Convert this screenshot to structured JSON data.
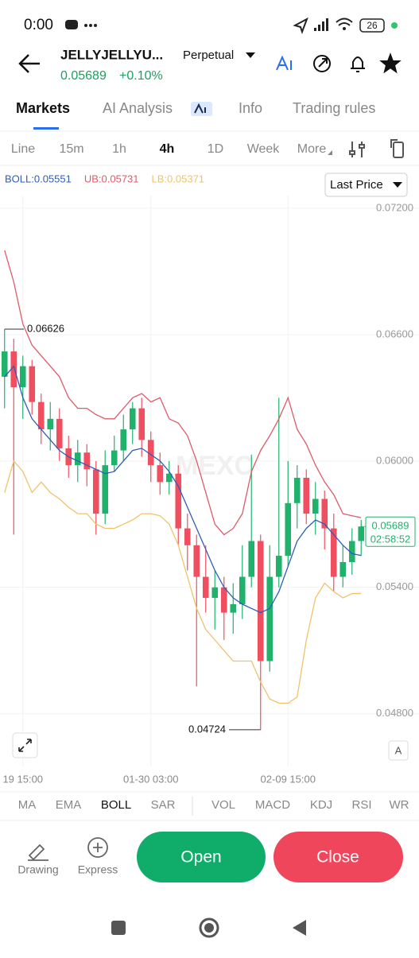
{
  "status_bar": {
    "time": "0:00",
    "battery": "26"
  },
  "header": {
    "symbol": "JELLYJELLYU...",
    "contract": "Perpetual",
    "price": "0.05689",
    "change": "+0.10%"
  },
  "tabs": [
    "Markets",
    "AI Analysis",
    "Info",
    "Trading rules"
  ],
  "intervals": [
    "Line",
    "15m",
    "1h",
    "4h",
    "1D",
    "Week",
    "More"
  ],
  "price_type": "Last Price",
  "indicators": [
    "MA",
    "EMA",
    "BOLL",
    "SAR",
    "VOL",
    "MACD",
    "KDJ",
    "RSI",
    "WR"
  ],
  "actions": {
    "drawing": "Drawing",
    "express": "Express",
    "open": "Open",
    "close": "Close"
  },
  "chart_data": {
    "type": "candlestick",
    "watermark": "MEXC",
    "scale_button": "A",
    "countdown": "02:58:52",
    "up_color": "#20b26c",
    "down_color": "#ef4f5f",
    "ylim": [
      0.0455,
      0.0726
    ],
    "yticks": [
      {
        "value": 0.072,
        "label": "0.07200"
      },
      {
        "value": 0.066,
        "label": "0.06600"
      },
      {
        "value": 0.06,
        "label": "0.06000"
      },
      {
        "value": 0.054,
        "label": "0.05400"
      },
      {
        "value": 0.048,
        "label": "0.04800"
      }
    ],
    "categories": [
      null,
      null,
      "19 15:00",
      null,
      null,
      null,
      null,
      null,
      null,
      null,
      null,
      null,
      null,
      null,
      null,
      null,
      "01-30 03:00",
      null,
      null,
      null,
      null,
      null,
      null,
      null,
      null,
      null,
      null,
      null,
      null,
      null,
      null,
      "02-09 15:00",
      null,
      null,
      null,
      null,
      null,
      null,
      null,
      null
    ],
    "open": [
      0.064,
      0.0652,
      0.0635,
      0.0645,
      0.0628,
      0.0615,
      0.062,
      0.0606,
      0.0598,
      0.0604,
      0.0596,
      0.0575,
      0.0598,
      0.0605,
      0.0615,
      0.0625,
      0.061,
      0.0598,
      0.059,
      0.0594,
      0.0568,
      0.056,
      0.0545,
      0.0535,
      0.054,
      0.0528,
      0.0532,
      0.0545,
      0.0562,
      0.0505,
      0.0545,
      0.0555,
      0.058,
      0.0592,
      0.0575,
      0.0582,
      0.0568,
      0.0545,
      0.0552,
      0.0562
    ],
    "high": [
      0.06626,
      0.0658,
      0.065,
      0.0648,
      0.0632,
      0.0628,
      0.0625,
      0.0612,
      0.061,
      0.0608,
      0.06,
      0.0605,
      0.0612,
      0.0622,
      0.0628,
      0.063,
      0.0614,
      0.0604,
      0.06,
      0.0598,
      0.0575,
      0.0565,
      0.056,
      0.0548,
      0.0545,
      0.0542,
      0.056,
      0.0603,
      0.0565,
      0.056,
      0.063,
      0.06,
      0.0598,
      0.0596,
      0.059,
      0.0586,
      0.0575,
      0.056,
      0.0568,
      0.0572
    ],
    "low": [
      0.0625,
      0.0565,
      0.062,
      0.0622,
      0.0608,
      0.0605,
      0.06,
      0.0592,
      0.059,
      0.0588,
      0.0565,
      0.057,
      0.0595,
      0.06,
      0.0608,
      0.0602,
      0.059,
      0.0584,
      0.0584,
      0.056,
      0.0548,
      0.0493,
      0.0528,
      0.052,
      0.0515,
      0.0518,
      0.0525,
      0.054,
      0.04724,
      0.05,
      0.054,
      0.055,
      0.0568,
      0.057,
      0.0565,
      0.0558,
      0.0538,
      0.054,
      0.0546,
      0.0555
    ],
    "close": [
      0.0652,
      0.0635,
      0.0645,
      0.0628,
      0.0615,
      0.062,
      0.0606,
      0.0598,
      0.0604,
      0.0596,
      0.0575,
      0.0598,
      0.0605,
      0.0615,
      0.0625,
      0.061,
      0.0598,
      0.059,
      0.0594,
      0.0568,
      0.056,
      0.0545,
      0.0535,
      0.054,
      0.0528,
      0.0532,
      0.0545,
      0.0562,
      0.0505,
      0.0545,
      0.0555,
      0.058,
      0.0592,
      0.0575,
      0.0582,
      0.0568,
      0.0545,
      0.0552,
      0.0562,
      0.05689
    ],
    "series": [
      {
        "name": "BOLL:0.05551",
        "color": "#2f5db8",
        "values": [
          0.064,
          0.0645,
          0.063,
          0.062,
          0.0615,
          0.061,
          0.0605,
          0.0602,
          0.06,
          0.0598,
          0.0596,
          0.0594,
          0.0595,
          0.06,
          0.0605,
          0.0606,
          0.0603,
          0.06,
          0.0595,
          0.0588,
          0.0578,
          0.0568,
          0.0558,
          0.0548,
          0.054,
          0.0535,
          0.0532,
          0.053,
          0.0528,
          0.053,
          0.0538,
          0.055,
          0.0562,
          0.0568,
          0.0572,
          0.057,
          0.0565,
          0.056,
          0.0556,
          0.05551
        ]
      },
      {
        "name": "UB:0.05731",
        "color": "#e05a68",
        "values": [
          0.07,
          0.0685,
          0.0665,
          0.0655,
          0.065,
          0.0645,
          0.064,
          0.063,
          0.0625,
          0.0625,
          0.0622,
          0.062,
          0.062,
          0.0625,
          0.063,
          0.0632,
          0.0628,
          0.063,
          0.062,
          0.0618,
          0.0612,
          0.06,
          0.0585,
          0.057,
          0.0565,
          0.0568,
          0.0575,
          0.0595,
          0.0605,
          0.0612,
          0.062,
          0.063,
          0.0615,
          0.0608,
          0.0598,
          0.059,
          0.0584,
          0.0575,
          0.0574,
          0.05731
        ]
      },
      {
        "name": "LB:0.05371",
        "color": "#f0c36a",
        "values": [
          0.0585,
          0.06,
          0.0595,
          0.0585,
          0.059,
          0.0585,
          0.0582,
          0.0578,
          0.0575,
          0.0575,
          0.057,
          0.0568,
          0.0568,
          0.057,
          0.0572,
          0.0575,
          0.0575,
          0.0574,
          0.057,
          0.056,
          0.0545,
          0.053,
          0.052,
          0.0515,
          0.051,
          0.0505,
          0.0505,
          0.0505,
          0.0495,
          0.0487,
          0.0485,
          0.0485,
          0.0488,
          0.0515,
          0.0535,
          0.0542,
          0.0538,
          0.0535,
          0.0537,
          0.05371
        ]
      }
    ]
  }
}
